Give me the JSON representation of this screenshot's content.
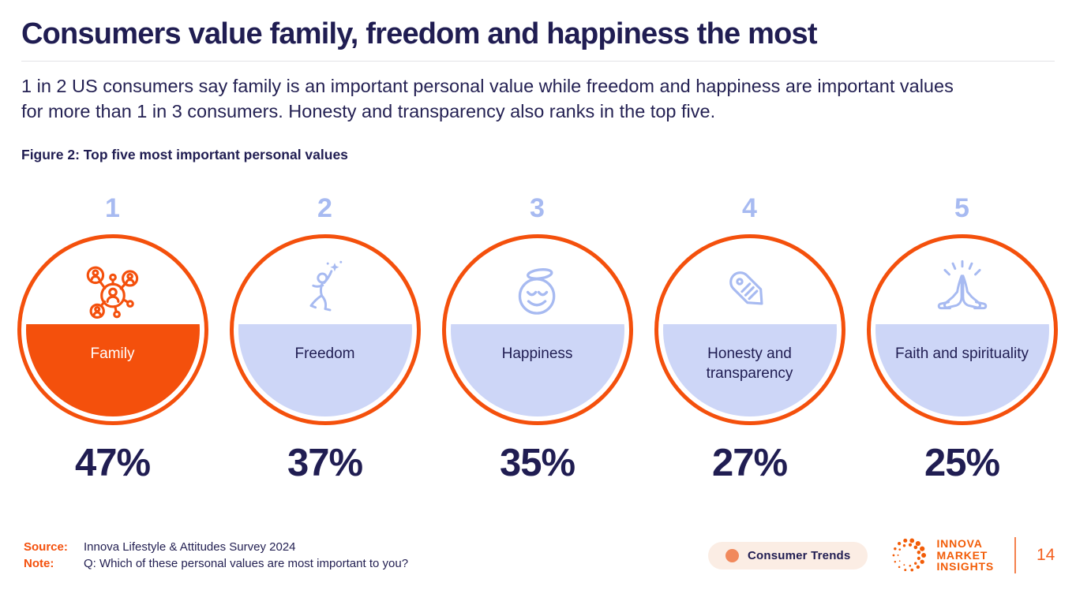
{
  "slide": {
    "title": "Consumers value family, freedom and happiness the most",
    "subtitle": "1 in 2 US consumers say family is an important personal value while freedom and happiness are important values for more than 1 in 3 consumers. Honesty and transparency also ranks in the top five.",
    "figure_caption": "Figure 2: Top five most important personal values"
  },
  "chart_data": {
    "type": "bar",
    "title": "Figure 2: Top five most important personal values",
    "categories": [
      "Family",
      "Freedom",
      "Happiness",
      "Honesty and transparency",
      "Faith and spirituality"
    ],
    "values": [
      47,
      37,
      35,
      27,
      25
    ],
    "value_unit": "%",
    "ranks": [
      1,
      2,
      3,
      4,
      5
    ],
    "highlight_index": 0,
    "highlight_color": "#F4500C",
    "series_color": "#CDD6F7",
    "grid": false,
    "legend": "none",
    "style": "pictorial ranked circles with liquid fill and value labels below"
  },
  "items": [
    {
      "rank": "1",
      "label": "Family",
      "value": "47%",
      "icon": "family-network-icon",
      "fill_color": "#F4500C"
    },
    {
      "rank": "2",
      "label": "Freedom",
      "value": "37%",
      "icon": "leaping-person-star-icon",
      "fill_color": "#CDD6F7"
    },
    {
      "rank": "3",
      "label": "Happiness",
      "value": "35%",
      "icon": "smiley-halo-icon",
      "fill_color": "#CDD6F7"
    },
    {
      "rank": "4",
      "label": "Honesty and transparency",
      "value": "27%",
      "icon": "price-tag-icon",
      "fill_color": "#CDD6F7"
    },
    {
      "rank": "5",
      "label": "Faith and spirituality",
      "value": "25%",
      "icon": "praying-hands-icon",
      "fill_color": "#CDD6F7"
    }
  ],
  "footer": {
    "source_label": "Source:",
    "source_text": "Innova Lifestyle & Attitudes Survey 2024",
    "note_label": "Note:",
    "note_text": "Q: Which of these personal values are most important to you?",
    "badge_text": "Consumer Trends",
    "logo_line1": "INNOVA",
    "logo_line2": "MARKET",
    "logo_line3": "INSIGHTS",
    "page_number": "14"
  },
  "colors": {
    "navy": "#201D52",
    "orange": "#F4500C",
    "lavender_fill": "#CDD6F7",
    "lavender_accent": "#A7BAF1",
    "badge_background": "#FBEDE4",
    "badge_dot": "#F1895C",
    "logo_orange": "#F25C07",
    "divider_gray": "#E3E3E6"
  }
}
